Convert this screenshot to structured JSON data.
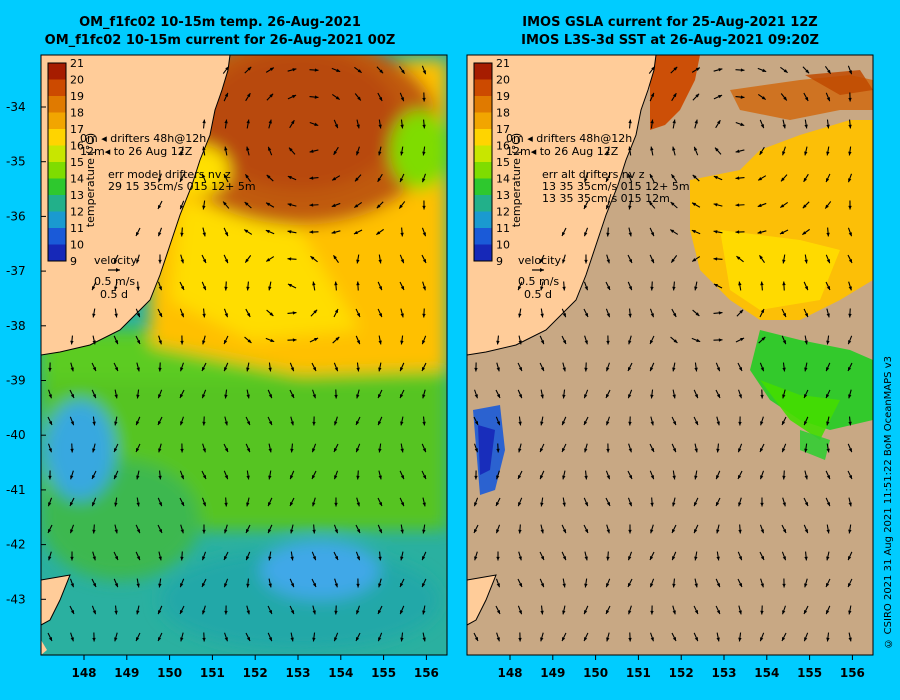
{
  "left_panel": {
    "title_line1": "OM_f1fc02 10-15m temp. 26-Aug-2021",
    "title_line2": "OM_f1fc02 10-15m current for 26-Aug-2021 00Z",
    "legend_drifters_line1": "0m  ◂ drifters 48h@12h",
    "legend_drifters_line2": "12m◂  to 26 Aug 12Z",
    "err_line1": "err model drifters nv z",
    "err_line2": "29 15 35cm/s 015 12+ 5m",
    "err_line3": "",
    "velocity_label": "velocity",
    "velocity_value": "0.5 m/s",
    "velocity_days": "0.5 d"
  },
  "right_panel": {
    "title_line1": "IMOS GSLA current for 25-Aug-2021 12Z",
    "title_line2": "IMOS L3S-3d SST at 26-Aug-2021 09:20Z",
    "legend_drifters_line1": "0m  ◂ drifters 48h@12h",
    "legend_drifters_line2": "12m◂  to 26 Aug 12Z",
    "err_line1": "err alt drifters nv z",
    "err_line2": "13 35 35cm/s 015 12+ 5m",
    "err_line3": "13 35 35cm/s 015 12m",
    "velocity_label": "velocity",
    "velocity_value": "0.5 m/s",
    "velocity_days": "0.5 d"
  },
  "colorbar": {
    "label": "temperature (°C)",
    "ticks": [
      "21",
      "20",
      "19",
      "18",
      "17",
      "16",
      "15",
      "14",
      "13",
      "12",
      "11",
      "10",
      "9"
    ],
    "colors": [
      "#a61c00",
      "#cc4a00",
      "#e07a00",
      "#f2a500",
      "#ffd400",
      "#c8e600",
      "#7fdc00",
      "#2ec82e",
      "#22b08a",
      "#1a9ad0",
      "#1a5ad8",
      "#1628b8",
      "#10108a"
    ]
  },
  "axes": {
    "y_ticks": [
      "-34",
      "-35",
      "-36",
      "-37",
      "-38",
      "-39",
      "-40",
      "-41",
      "-42",
      "-43"
    ],
    "x_ticks": [
      "148",
      "149",
      "150",
      "151",
      "152",
      "153",
      "154",
      "155",
      "156"
    ]
  },
  "colors": {
    "background": "#00ccff",
    "land": "#ffcc99",
    "masked_sea": "#c8a884",
    "warm_core": "#c05a10",
    "warm": "#ffc000",
    "mid": "#5ccc20",
    "cool": "#2ab0a0"
  },
  "credit": "© CSIRO 2021   31 Aug 2021 11:51:22 BoM OceanMAPS v3"
}
